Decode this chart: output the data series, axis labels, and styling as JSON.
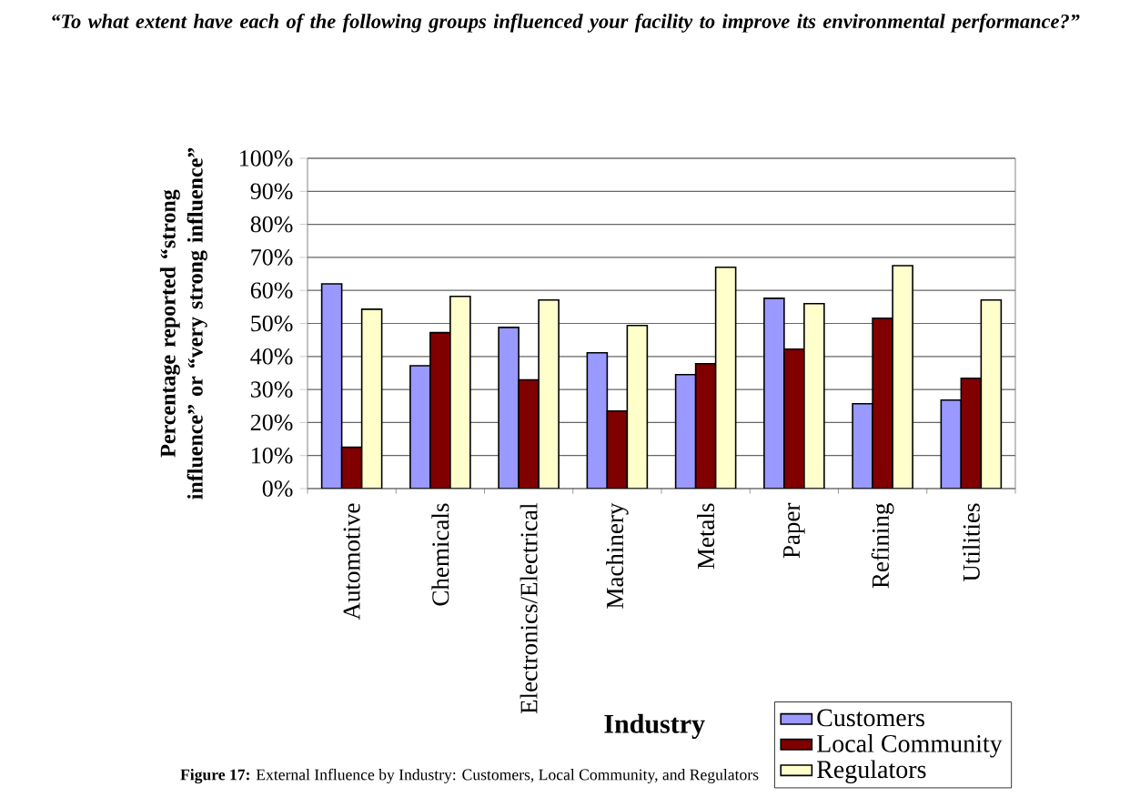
{
  "chart_data": {
    "type": "bar",
    "title": "“To what extent have each of the following groups influenced your facility to improve its environmental performance?”",
    "xlabel": "Industry",
    "ylabel": "Percentage reported “strong influence” or “very strong influence”",
    "annotations": [
      "**Figure 17:** External Influence by Industry: Customers, Local Community, and Regulators"
    ],
    "categories": [
      "Automotive",
      "Chemicals",
      "Electronics/Electrical",
      "Machinery",
      "Metals",
      "Paper",
      "Refining",
      "Utilities"
    ],
    "series": [
      {
        "name": "Customers",
        "color": "#9999ff",
        "values": [
          62.0,
          37.2,
          48.8,
          41.1,
          34.5,
          57.6,
          25.7,
          26.8
        ]
      },
      {
        "name": "Local Community",
        "color": "#800000",
        "values": [
          12.5,
          47.2,
          32.9,
          23.5,
          37.8,
          42.2,
          51.6,
          33.4
        ]
      },
      {
        "name": "Regulators",
        "color": "#ffffcc",
        "values": [
          54.3,
          58.2,
          57.1,
          49.4,
          67.0,
          56.0,
          67.5,
          57.1
        ]
      }
    ],
    "ylim": [
      0,
      100
    ],
    "yticks": [
      {
        "value": 0,
        "label": "0%"
      },
      {
        "value": 10,
        "label": "10%"
      },
      {
        "value": 20,
        "label": "20%"
      },
      {
        "value": 30,
        "label": "30%"
      },
      {
        "value": 40,
        "label": "40%"
      },
      {
        "value": 50,
        "label": "50%"
      },
      {
        "value": 60,
        "label": "60%"
      },
      {
        "value": 70,
        "label": "70%"
      },
      {
        "value": 80,
        "label": "80%"
      },
      {
        "value": 90,
        "label": "90%"
      },
      {
        "value": 100,
        "label": "100%"
      }
    ],
    "grid": "y",
    "legend": "bottom right"
  }
}
